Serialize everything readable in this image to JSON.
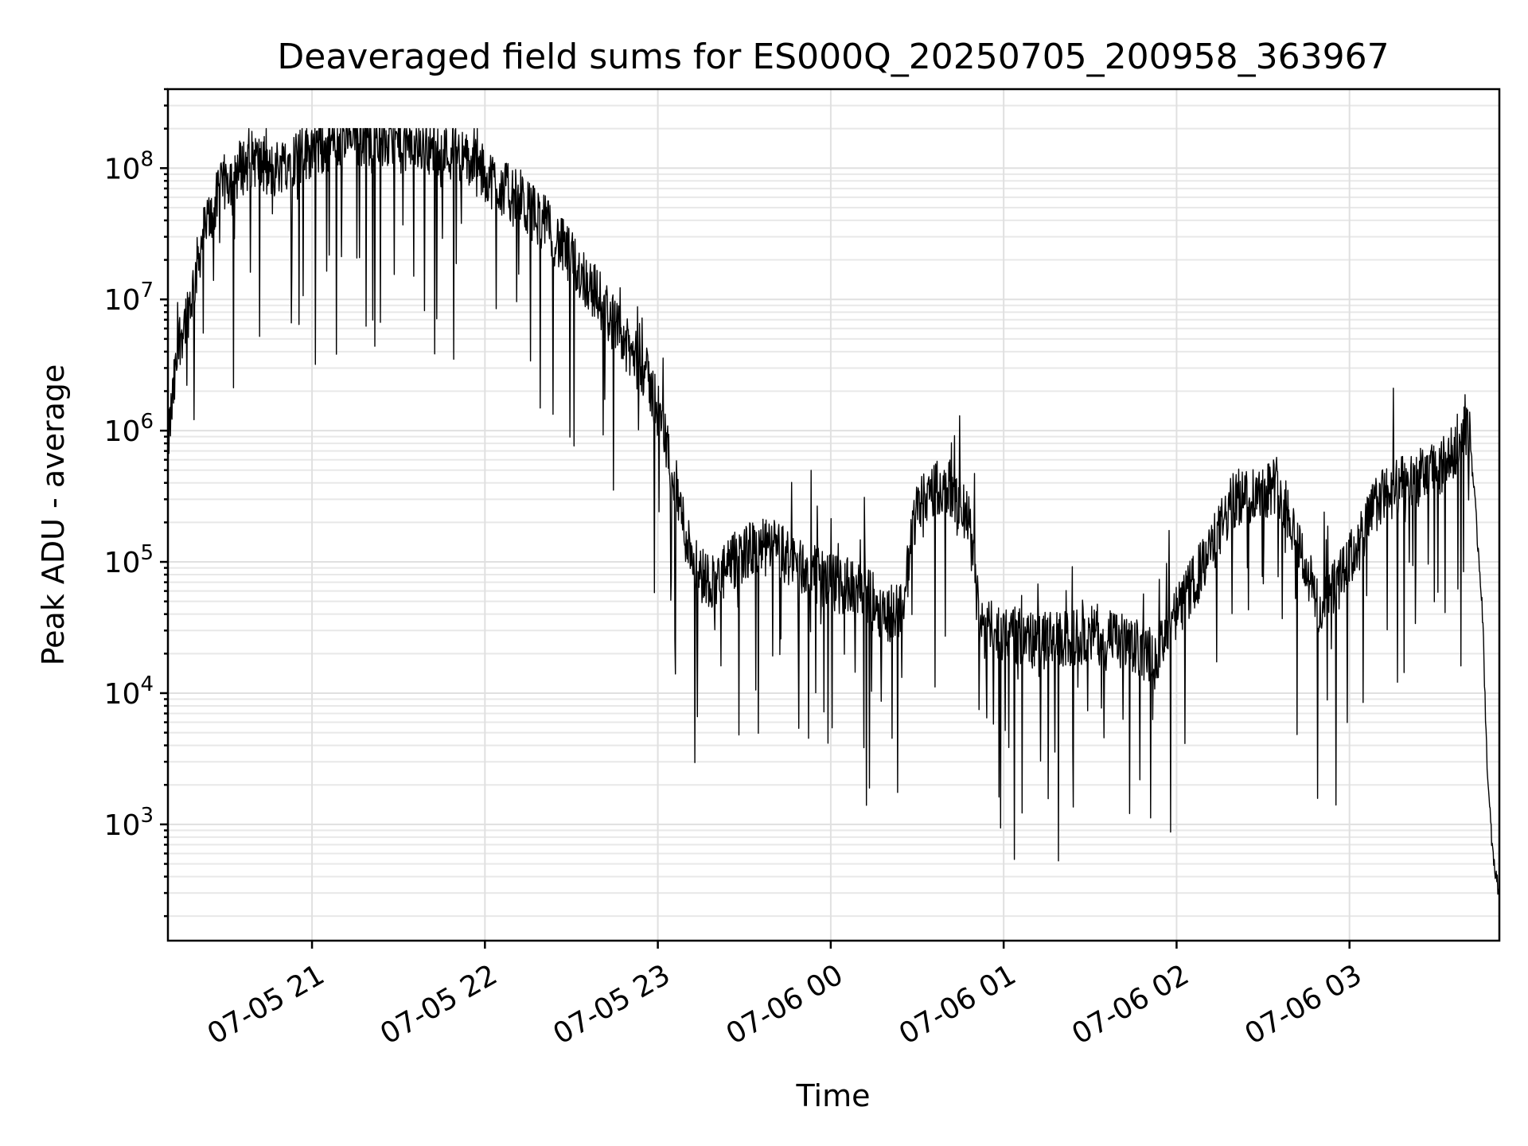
{
  "chart_data": {
    "type": "line",
    "title": "Deaveraged field sums for ES000Q_20250705_200958_363967",
    "xlabel": "Time",
    "ylabel": "Peak ADU - average",
    "y_scale": "log",
    "ylim": [
      130,
      400000000
    ],
    "xlim": [
      "2025-07-05 20:10",
      "2025-07-06 03:52"
    ],
    "grid": true,
    "x_ticks": [
      {
        "value": "2025-07-05 21:00",
        "label": "07-05 21"
      },
      {
        "value": "2025-07-05 22:00",
        "label": "07-05 22"
      },
      {
        "value": "2025-07-05 23:00",
        "label": "07-05 23"
      },
      {
        "value": "2025-07-06 00:00",
        "label": "07-06 00"
      },
      {
        "value": "2025-07-06 01:00",
        "label": "07-06 01"
      },
      {
        "value": "2025-07-06 02:00",
        "label": "07-06 02"
      },
      {
        "value": "2025-07-06 03:00",
        "label": "07-06 03"
      }
    ],
    "y_ticks": [
      {
        "value": 1000,
        "base": "10",
        "exp": "3"
      },
      {
        "value": 10000,
        "base": "10",
        "exp": "4"
      },
      {
        "value": 100000,
        "base": "10",
        "exp": "5"
      },
      {
        "value": 1000000,
        "base": "10",
        "exp": "6"
      },
      {
        "value": 10000000,
        "base": "10",
        "exp": "7"
      },
      {
        "value": 100000000,
        "base": "10",
        "exp": "8"
      }
    ],
    "series": [
      {
        "color": "#000000",
        "x": [
          "2025-07-05 20:10",
          "2025-07-05 20:14",
          "2025-07-05 20:18",
          "2025-07-05 20:22",
          "2025-07-05 20:26",
          "2025-07-05 20:30",
          "2025-07-05 20:35",
          "2025-07-05 20:40",
          "2025-07-05 20:45",
          "2025-07-05 20:50",
          "2025-07-05 21:00",
          "2025-07-05 21:10",
          "2025-07-05 21:20",
          "2025-07-05 21:30",
          "2025-07-05 21:40",
          "2025-07-05 21:50",
          "2025-07-05 22:00",
          "2025-07-05 22:10",
          "2025-07-05 22:20",
          "2025-07-05 22:30",
          "2025-07-05 22:40",
          "2025-07-05 22:50",
          "2025-07-05 22:55",
          "2025-07-05 23:00",
          "2025-07-05 23:05",
          "2025-07-05 23:10",
          "2025-07-05 23:15",
          "2025-07-05 23:20",
          "2025-07-05 23:30",
          "2025-07-05 23:40",
          "2025-07-05 23:50",
          "2025-07-06 00:00",
          "2025-07-06 00:10",
          "2025-07-06 00:20",
          "2025-07-06 00:25",
          "2025-07-06 00:30",
          "2025-07-06 00:40",
          "2025-07-06 00:48",
          "2025-07-06 00:52",
          "2025-07-06 01:00",
          "2025-07-06 01:10",
          "2025-07-06 01:20",
          "2025-07-06 01:30",
          "2025-07-06 01:40",
          "2025-07-06 01:50",
          "2025-07-06 01:55",
          "2025-07-06 02:00",
          "2025-07-06 02:10",
          "2025-07-06 02:20",
          "2025-07-06 02:30",
          "2025-07-06 02:35",
          "2025-07-06 02:40",
          "2025-07-06 02:50",
          "2025-07-06 03:00",
          "2025-07-06 03:10",
          "2025-07-06 03:20",
          "2025-07-06 03:30",
          "2025-07-06 03:35",
          "2025-07-06 03:40",
          "2025-07-06 03:42",
          "2025-07-06 03:44",
          "2025-07-06 03:46",
          "2025-07-06 03:48",
          "2025-07-06 03:50",
          "2025-07-06 03:52"
        ],
        "y": [
          800000,
          5000000,
          10000000,
          30000000,
          50000000,
          80000000,
          100000000,
          120000000,
          90000000,
          110000000,
          140000000,
          160000000,
          170000000,
          150000000,
          150000000,
          130000000,
          90000000,
          60000000,
          40000000,
          20000000,
          10000000,
          4000000,
          3000000,
          1500000,
          500000,
          150000,
          80000,
          70000,
          120000,
          130000,
          90000,
          70000,
          60000,
          40000,
          45000,
          300000,
          400000,
          200000,
          30000,
          30000,
          25000,
          25000,
          28000,
          25000,
          20000,
          22000,
          40000,
          100000,
          300000,
          350000,
          400000,
          200000,
          40000,
          100000,
          300000,
          400000,
          500000,
          600000,
          1200000,
          800000,
          200000,
          50000,
          2000,
          500,
          300
        ]
      }
    ]
  }
}
